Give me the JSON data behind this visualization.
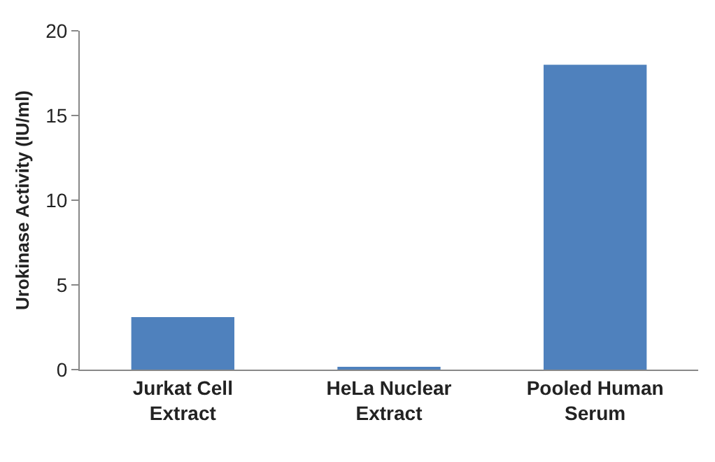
{
  "chart_data": {
    "type": "bar",
    "ylabel": "Urokinase Activity (IU/ml)",
    "categories": [
      "Jurkat Cell Extract",
      "HeLa Nuclear Extract",
      "Pooled Human Serum"
    ],
    "values": [
      3.1,
      0.1,
      18
    ],
    "color": "#4f81bd",
    "ylim": [
      0,
      20
    ],
    "yticks": [
      0,
      5,
      10,
      15,
      20
    ],
    "grid": false,
    "legend": false
  }
}
